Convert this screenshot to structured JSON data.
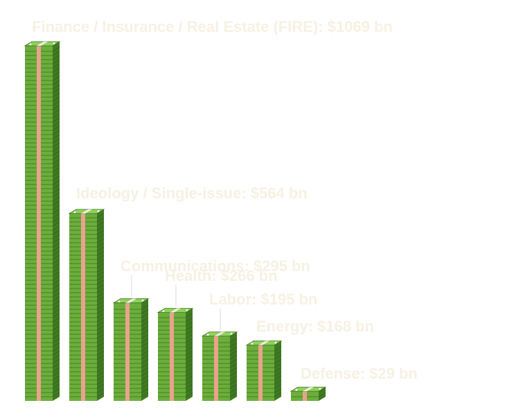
{
  "chart_data": {
    "type": "bar",
    "title": "",
    "xlabel": "",
    "ylabel": "",
    "categories": [
      "Finance / Insurance / Real Estate (FIRE)",
      "Ideology / Single-issue",
      "Communications",
      "Health",
      "Labor",
      "Energy",
      "Defense"
    ],
    "values": [
      1069,
      564,
      295,
      266,
      195,
      168,
      29
    ],
    "data_labels": [
      "Finance / Insurance / Real Estate (FIRE): $1069 bn",
      "Ideology / Single-issue: $564 bn",
      "Communications: $295 bn",
      "Health: $266 bn",
      "Labor: $195 bn",
      "Energy: $168 bn",
      "Defense: $29 bn"
    ],
    "unit": "$ bn",
    "ylim": [
      0,
      1069
    ],
    "grid": false,
    "legend": "none",
    "colors": {
      "bill_front": "#6cae3c",
      "bill_side": "#3f7a22",
      "bill_top": "#8fd25a",
      "bill_line": "#3a6e1e",
      "band": "#e9a38c",
      "label": "#f7f1e3",
      "leader": "#d9d9d9"
    }
  }
}
